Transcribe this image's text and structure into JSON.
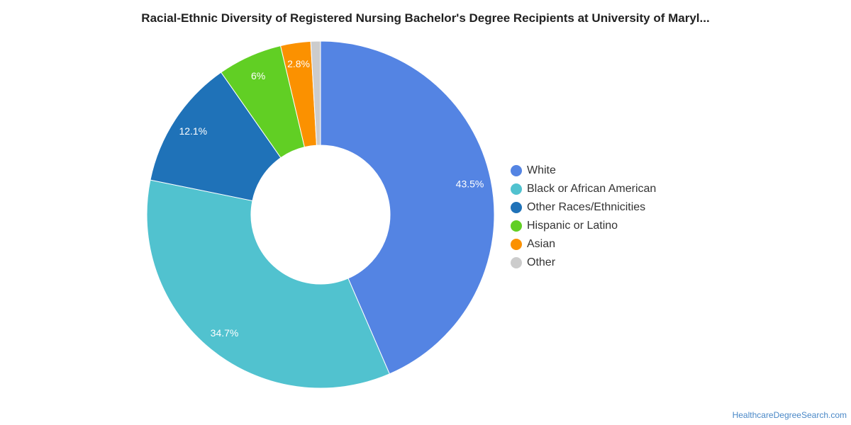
{
  "title": "Racial-Ethnic Diversity of Registered Nursing Bachelor's Degree Recipients at University of Maryl...",
  "source": "HealthcareDegreeSearch.com",
  "chart_data": {
    "type": "pie",
    "variant": "donut",
    "title": "Racial-Ethnic Diversity of Registered Nursing Bachelor's Degree Recipients at University of Maryl...",
    "legend_position": "right",
    "categories": [
      "White",
      "Black or African American",
      "Other Races/Ethnicities",
      "Hispanic or Latino",
      "Asian",
      "Other"
    ],
    "values": [
      43.5,
      34.7,
      12.1,
      6,
      2.8,
      0.9
    ],
    "data_labels": [
      "43.5%",
      "34.7%",
      "12.1%",
      "6%",
      "2.8%",
      ""
    ],
    "colors": [
      "#5484e3",
      "#51c2cf",
      "#1f72b8",
      "#61cf24",
      "#fb9100",
      "#cccccc"
    ]
  }
}
